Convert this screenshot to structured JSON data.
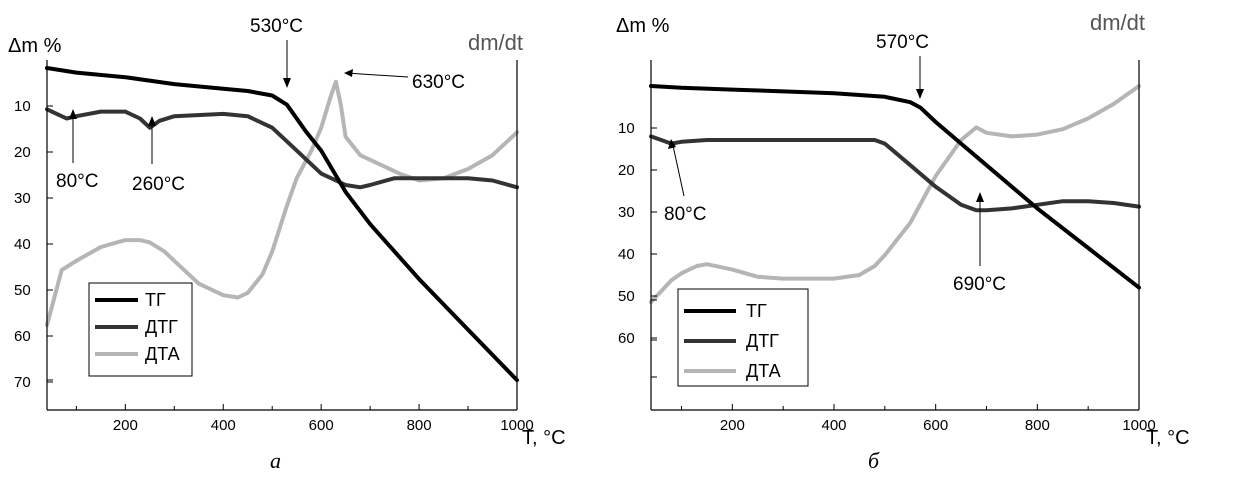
{
  "chart_data": [
    {
      "type": "line",
      "panel_label": "а",
      "ylabel": "Δm %",
      "y2label": "dm/dt",
      "xlabel": "T, °C",
      "xlim": [
        40,
        1000
      ],
      "x_ticks": [
        200,
        400,
        600,
        800,
        1000
      ],
      "y_ticks": [
        10,
        20,
        30,
        40,
        50,
        60,
        70
      ],
      "series": [
        {
          "name": "ТГ",
          "color": "#000000",
          "x": [
            40,
            100,
            200,
            300,
            400,
            450,
            500,
            530,
            570,
            600,
            650,
            700,
            800,
            900,
            1000
          ],
          "y": [
            0,
            1,
            2,
            3.5,
            4.5,
            5,
            6,
            8,
            14,
            18,
            27,
            34,
            46,
            57,
            68
          ]
        },
        {
          "name": "ДТГ",
          "color": "#333333",
          "x": [
            40,
            60,
            80,
            100,
            150,
            200,
            230,
            250,
            270,
            300,
            400,
            450,
            500,
            550,
            600,
            650,
            680,
            700,
            750,
            800,
            900,
            950,
            1000
          ],
          "y": [
            9,
            10,
            11,
            10.5,
            9.5,
            9.5,
            11,
            13,
            11.5,
            10.5,
            10,
            10.5,
            13,
            18,
            23,
            25.5,
            26,
            25.5,
            24,
            24,
            24,
            24.5,
            26
          ]
        },
        {
          "name": "ДТА",
          "color": "#b5b5b5",
          "x": [
            40,
            50,
            70,
            100,
            150,
            200,
            230,
            250,
            280,
            300,
            350,
            400,
            430,
            450,
            480,
            500,
            530,
            550,
            580,
            600,
            620,
            630,
            640,
            650,
            680,
            720,
            760,
            800,
            850,
            900,
            950,
            1000
          ],
          "y": [
            56,
            52,
            44,
            42,
            39,
            37.5,
            37.5,
            38,
            40,
            42,
            47,
            49.5,
            50,
            49,
            45,
            40,
            30,
            24,
            18,
            13,
            6,
            3,
            8,
            15,
            19,
            21,
            23,
            24.5,
            24,
            22,
            19,
            14
          ]
        }
      ],
      "annotations": [
        {
          "text": "530°C",
          "x": 530
        },
        {
          "text": "630°C",
          "x": 630
        },
        {
          "text": "80°C",
          "x": 80
        },
        {
          "text": "260°C",
          "x": 260
        }
      ],
      "legend": {
        "position": "bottom-left",
        "entries": [
          "ТГ",
          "ДТГ",
          "ДТА"
        ]
      }
    },
    {
      "type": "line",
      "panel_label": "б",
      "ylabel": "Δm %",
      "y2label": "dm/dt",
      "xlabel": "T, °C",
      "xlim": [
        40,
        1000
      ],
      "x_ticks": [
        200,
        400,
        600,
        800,
        1000
      ],
      "y_ticks": [
        10,
        20,
        30,
        40,
        50,
        60
      ],
      "series": [
        {
          "name": "ТГ",
          "color": "#000000",
          "x": [
            40,
            100,
            200,
            300,
            400,
            500,
            550,
            570,
            600,
            650,
            700,
            800,
            900,
            1000
          ],
          "y": [
            0,
            0.5,
            1,
            1.5,
            2,
            3,
            4.5,
            6,
            10,
            16,
            22,
            34,
            45,
            56
          ]
        },
        {
          "name": "ДТГ",
          "color": "#333333",
          "x": [
            40,
            60,
            80,
            100,
            150,
            200,
            300,
            400,
            480,
            500,
            550,
            600,
            650,
            680,
            700,
            750,
            800,
            850,
            900,
            950,
            1000
          ],
          "y": [
            14,
            15,
            16,
            15.5,
            15,
            15,
            15,
            15,
            15,
            16,
            22,
            28,
            33,
            34.5,
            34.5,
            34,
            33,
            32,
            32,
            32.5,
            33.5
          ]
        },
        {
          "name": "ДТА",
          "color": "#b5b5b5",
          "x": [
            40,
            60,
            80,
            100,
            130,
            150,
            200,
            250,
            300,
            400,
            450,
            480,
            500,
            550,
            600,
            650,
            680,
            700,
            750,
            800,
            850,
            900,
            950,
            1000
          ],
          "y": [
            60,
            57,
            54,
            52,
            50,
            49.5,
            51,
            53,
            53.5,
            53.5,
            52.5,
            50,
            47,
            38,
            25,
            15,
            11.5,
            13,
            14,
            13.5,
            12,
            9,
            5,
            0
          ]
        }
      ],
      "annotations": [
        {
          "text": "570°C",
          "x": 570
        },
        {
          "text": "80°C",
          "x": 80
        },
        {
          "text": "690°C",
          "x": 690
        }
      ],
      "legend": {
        "position": "bottom-left",
        "entries": [
          "ТГ",
          "ДТГ",
          "ДТА"
        ]
      }
    }
  ]
}
